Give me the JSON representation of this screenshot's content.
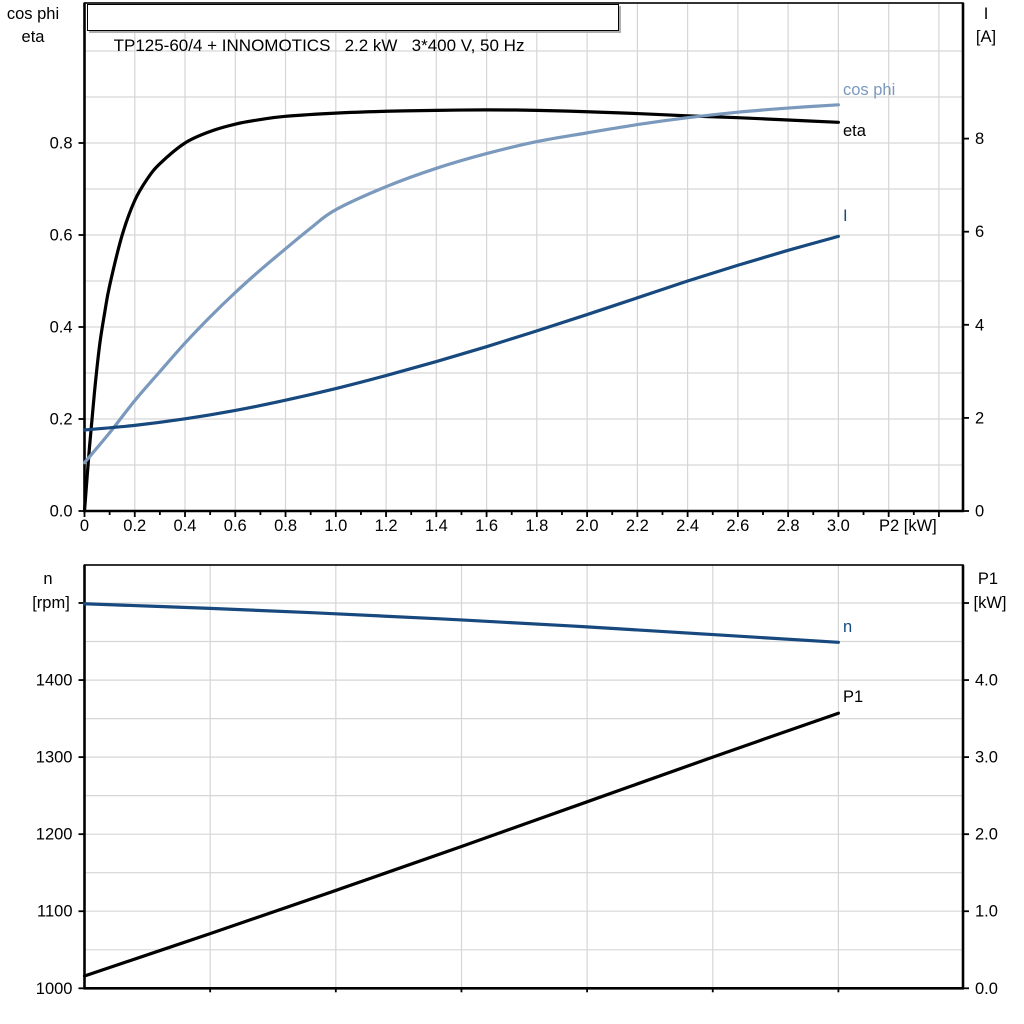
{
  "colors": {
    "black": "#000000",
    "light_blue": "#7a99bd",
    "dark_blue": "#17497e",
    "grid": "#d6d6d6",
    "axis": "#000000",
    "background": "#ffffff"
  },
  "chart_data": [
    {
      "type": "line",
      "title": "TP125-60/4 + INNOMOTICS   2.2 kW   3*400 V, 50 Hz",
      "grid": "on",
      "legend_position": "inline-right",
      "x_axis": {
        "label": "P2 [kW]",
        "min": 0,
        "max": 3.5,
        "ticks": [
          0,
          0.2,
          0.4,
          0.6,
          0.8,
          1.0,
          1.2,
          1.4,
          1.6,
          1.8,
          2.0,
          2.2,
          2.4,
          2.6,
          2.8,
          3.0,
          3.2,
          3.4
        ],
        "tick_labels": [
          "0",
          "0.2",
          "0.4",
          "0.6",
          "0.8",
          "1.0",
          "1.2",
          "1.4",
          "1.6",
          "1.8",
          "2.0",
          "2.2",
          "2.4",
          "2.6",
          "2.8",
          "3.0",
          "",
          ""
        ]
      },
      "y_left": {
        "label_lines": [
          "cos phi",
          "eta"
        ],
        "min": 0,
        "max": 1.1,
        "ticks": [
          0,
          0.2,
          0.4,
          0.6,
          0.8
        ],
        "tick_labels": [
          "0.0",
          "0.2",
          "0.4",
          "0.6",
          "0.8"
        ]
      },
      "y_right": {
        "label_lines": [
          "I",
          "[A]"
        ],
        "min": 0,
        "max": 10.9,
        "ticks": [
          0,
          2,
          4,
          6,
          8
        ],
        "tick_labels": [
          "0",
          "2",
          "4",
          "6",
          "8"
        ]
      },
      "series": [
        {
          "name": "eta",
          "label": "eta",
          "axis": "left",
          "color_key": "black",
          "points": [
            [
              0,
              0
            ],
            [
              0.02,
              0.14
            ],
            [
              0.04,
              0.26
            ],
            [
              0.06,
              0.36
            ],
            [
              0.08,
              0.43
            ],
            [
              0.1,
              0.49
            ],
            [
              0.15,
              0.6
            ],
            [
              0.2,
              0.675
            ],
            [
              0.25,
              0.722
            ],
            [
              0.3,
              0.755
            ],
            [
              0.4,
              0.8
            ],
            [
              0.5,
              0.825
            ],
            [
              0.6,
              0.841
            ],
            [
              0.7,
              0.851
            ],
            [
              0.8,
              0.858
            ],
            [
              1.0,
              0.865
            ],
            [
              1.2,
              0.869
            ],
            [
              1.4,
              0.871
            ],
            [
              1.6,
              0.872
            ],
            [
              1.8,
              0.871
            ],
            [
              2.0,
              0.868
            ],
            [
              2.2,
              0.864
            ],
            [
              2.4,
              0.859
            ],
            [
              2.6,
              0.855
            ],
            [
              2.8,
              0.85
            ],
            [
              3.0,
              0.845
            ]
          ]
        },
        {
          "name": "cos phi",
          "label": "cos phi",
          "axis": "left",
          "color_key": "light_blue",
          "points": [
            [
              0,
              0.105
            ],
            [
              0.1,
              0.17
            ],
            [
              0.2,
              0.24
            ],
            [
              0.3,
              0.303
            ],
            [
              0.4,
              0.365
            ],
            [
              0.5,
              0.422
            ],
            [
              0.6,
              0.475
            ],
            [
              0.7,
              0.524
            ],
            [
              0.8,
              0.57
            ],
            [
              0.9,
              0.615
            ],
            [
              1.0,
              0.655
            ],
            [
              1.2,
              0.705
            ],
            [
              1.4,
              0.745
            ],
            [
              1.6,
              0.777
            ],
            [
              1.8,
              0.803
            ],
            [
              2.0,
              0.822
            ],
            [
              2.2,
              0.84
            ],
            [
              2.4,
              0.855
            ],
            [
              2.6,
              0.867
            ],
            [
              2.8,
              0.876
            ],
            [
              3.0,
              0.883
            ]
          ]
        },
        {
          "name": "I",
          "label": "I",
          "axis": "right",
          "color_key": "dark_blue",
          "points": [
            [
              0,
              1.74
            ],
            [
              0.2,
              1.84
            ],
            [
              0.4,
              1.98
            ],
            [
              0.6,
              2.16
            ],
            [
              0.8,
              2.38
            ],
            [
              1.0,
              2.63
            ],
            [
              1.2,
              2.91
            ],
            [
              1.4,
              3.21
            ],
            [
              1.6,
              3.53
            ],
            [
              1.8,
              3.87
            ],
            [
              2.0,
              4.22
            ],
            [
              2.2,
              4.58
            ],
            [
              2.4,
              4.94
            ],
            [
              2.6,
              5.28
            ],
            [
              2.8,
              5.6
            ],
            [
              3.0,
              5.9
            ]
          ]
        }
      ]
    },
    {
      "type": "line",
      "title": "",
      "grid": "on",
      "legend_position": "inline-right",
      "x_axis": {
        "label": "",
        "min": 0,
        "max": 3.5,
        "ticks": [
          0.5,
          1.0,
          1.5,
          2.0,
          2.5,
          3.0
        ],
        "tick_labels": [
          "",
          "",
          "",
          "",
          "",
          ""
        ]
      },
      "y_left": {
        "label_lines": [
          "n",
          "[rpm]"
        ],
        "min": 1000,
        "max": 1550,
        "ticks": [
          1000,
          1100,
          1200,
          1300,
          1400,
          1500
        ],
        "tick_labels": [
          "1000",
          "1100",
          "1200",
          "1300",
          "1400",
          ""
        ]
      },
      "y_right": {
        "label_lines": [
          "P1",
          "[kW]"
        ],
        "min": 0,
        "max": 5.5,
        "ticks": [
          0,
          1,
          2,
          3,
          4,
          5
        ],
        "tick_labels": [
          "0.0",
          "1.0",
          "2.0",
          "3.0",
          "4.0",
          ""
        ]
      },
      "series": [
        {
          "name": "n",
          "label": "n",
          "axis": "left",
          "color_key": "dark_blue",
          "points": [
            [
              0,
              1499
            ],
            [
              0.5,
              1493
            ],
            [
              1.0,
              1486
            ],
            [
              1.5,
              1478
            ],
            [
              2.0,
              1469
            ],
            [
              2.5,
              1459
            ],
            [
              3.0,
              1449
            ]
          ]
        },
        {
          "name": "P1",
          "label": "P1",
          "axis": "right",
          "color_key": "black",
          "points": [
            [
              0,
              0.16
            ],
            [
              0.5,
              0.71
            ],
            [
              1.0,
              1.27
            ],
            [
              1.5,
              1.84
            ],
            [
              2.0,
              2.42
            ],
            [
              2.5,
              3.0
            ],
            [
              3.0,
              3.57
            ]
          ]
        }
      ]
    }
  ]
}
